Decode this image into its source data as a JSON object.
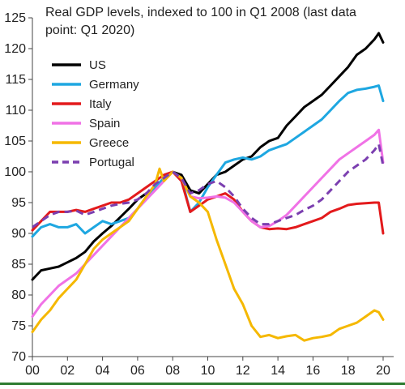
{
  "chart_data": {
    "type": "line",
    "title_lines": [
      "Real GDP levels, indexed to 100 in Q1 2008  (last data",
      "point: Q1 2020)"
    ],
    "xlabel": "",
    "ylabel": "",
    "xlim": [
      2000,
      2020.6
    ],
    "ylim": [
      70,
      125
    ],
    "x_ticks": [
      2000,
      2002,
      2004,
      2006,
      2008,
      2010,
      2012,
      2014,
      2016,
      2018,
      2020
    ],
    "x_tick_labels": [
      "00",
      "02",
      "04",
      "06",
      "08",
      "10",
      "12",
      "14",
      "16",
      "18",
      "20"
    ],
    "y_ticks": [
      70,
      75,
      80,
      85,
      90,
      95,
      100,
      105,
      110,
      115,
      120,
      125
    ],
    "y_tick_labels": [
      "70",
      "75",
      "80",
      "85",
      "90",
      "95",
      "100",
      "105",
      "110",
      "115",
      "120",
      "125"
    ],
    "grid": false,
    "legend_position": "top-left",
    "series": [
      {
        "name": "US",
        "color": "#000000",
        "dash": "solid",
        "points": [
          [
            2000,
            82.5
          ],
          [
            2000.5,
            84
          ],
          [
            2001,
            84.3
          ],
          [
            2001.5,
            84.6
          ],
          [
            2002,
            85.3
          ],
          [
            2002.5,
            86
          ],
          [
            2003,
            87
          ],
          [
            2003.5,
            88.7
          ],
          [
            2004,
            90
          ],
          [
            2004.5,
            91.2
          ],
          [
            2005,
            92.6
          ],
          [
            2005.5,
            94
          ],
          [
            2006,
            95.5
          ],
          [
            2006.5,
            96.5
          ],
          [
            2007,
            97.5
          ],
          [
            2007.5,
            99
          ],
          [
            2008,
            100
          ],
          [
            2008.5,
            99.5
          ],
          [
            2009,
            97
          ],
          [
            2009.5,
            96.5
          ],
          [
            2010,
            98
          ],
          [
            2010.5,
            99.5
          ],
          [
            2011,
            100
          ],
          [
            2011.5,
            101
          ],
          [
            2012,
            102
          ],
          [
            2012.5,
            102.5
          ],
          [
            2013,
            104
          ],
          [
            2013.5,
            105
          ],
          [
            2014,
            105.5
          ],
          [
            2014.5,
            107.5
          ],
          [
            2015,
            109
          ],
          [
            2015.5,
            110.5
          ],
          [
            2016,
            111.5
          ],
          [
            2016.5,
            112.5
          ],
          [
            2017,
            114
          ],
          [
            2017.5,
            115.5
          ],
          [
            2018,
            117
          ],
          [
            2018.5,
            119
          ],
          [
            2019,
            120
          ],
          [
            2019.5,
            121.5
          ],
          [
            2019.75,
            122.5
          ],
          [
            2020,
            121
          ]
        ]
      },
      {
        "name": "Germany",
        "color": "#1ea7e1",
        "dash": "solid",
        "points": [
          [
            2000,
            89.5
          ],
          [
            2000.5,
            91
          ],
          [
            2001,
            91.5
          ],
          [
            2001.5,
            91
          ],
          [
            2002,
            91
          ],
          [
            2002.5,
            91.5
          ],
          [
            2003,
            90
          ],
          [
            2003.5,
            91
          ],
          [
            2004,
            92
          ],
          [
            2004.5,
            91.5
          ],
          [
            2005,
            92
          ],
          [
            2005.5,
            92.5
          ],
          [
            2006,
            94
          ],
          [
            2006.5,
            96
          ],
          [
            2007,
            97.5
          ],
          [
            2007.5,
            99
          ],
          [
            2008,
            100
          ],
          [
            2008.5,
            99
          ],
          [
            2009,
            93.5
          ],
          [
            2009.5,
            95
          ],
          [
            2010,
            97.5
          ],
          [
            2010.5,
            99.5
          ],
          [
            2011,
            101.5
          ],
          [
            2011.5,
            102
          ],
          [
            2012,
            102.3
          ],
          [
            2012.5,
            102
          ],
          [
            2013,
            102.5
          ],
          [
            2013.5,
            103.5
          ],
          [
            2014,
            104
          ],
          [
            2014.5,
            104.5
          ],
          [
            2015,
            105.5
          ],
          [
            2015.5,
            106.5
          ],
          [
            2016,
            107.5
          ],
          [
            2016.5,
            108.5
          ],
          [
            2017,
            110
          ],
          [
            2017.5,
            111.5
          ],
          [
            2018,
            112.8
          ],
          [
            2018.5,
            113.3
          ],
          [
            2019,
            113.5
          ],
          [
            2019.5,
            113.8
          ],
          [
            2019.75,
            114
          ],
          [
            2020,
            111.5
          ]
        ]
      },
      {
        "name": "Italy",
        "color": "#e31a1c",
        "dash": "solid",
        "points": [
          [
            2000,
            90.5
          ],
          [
            2000.5,
            92
          ],
          [
            2001,
            93.5
          ],
          [
            2001.5,
            93.5
          ],
          [
            2002,
            93.5
          ],
          [
            2002.5,
            93.8
          ],
          [
            2003,
            93.5
          ],
          [
            2003.5,
            94
          ],
          [
            2004,
            94.5
          ],
          [
            2004.5,
            95
          ],
          [
            2005,
            95
          ],
          [
            2005.5,
            95.5
          ],
          [
            2006,
            96.5
          ],
          [
            2006.5,
            97.5
          ],
          [
            2007,
            98.5
          ],
          [
            2007.5,
            99.5
          ],
          [
            2008,
            100
          ],
          [
            2008.5,
            98.5
          ],
          [
            2009,
            93.5
          ],
          [
            2009.5,
            94.5
          ],
          [
            2010,
            95.5
          ],
          [
            2010.5,
            96
          ],
          [
            2011,
            96.5
          ],
          [
            2011.5,
            95.5
          ],
          [
            2012,
            93.5
          ],
          [
            2012.5,
            92
          ],
          [
            2013,
            91
          ],
          [
            2013.5,
            90.7
          ],
          [
            2014,
            90.8
          ],
          [
            2014.5,
            90.7
          ],
          [
            2015,
            91
          ],
          [
            2015.5,
            91.5
          ],
          [
            2016,
            92
          ],
          [
            2016.5,
            92.5
          ],
          [
            2017,
            93.5
          ],
          [
            2017.5,
            94
          ],
          [
            2018,
            94.6
          ],
          [
            2018.5,
            94.8
          ],
          [
            2019,
            94.9
          ],
          [
            2019.5,
            95
          ],
          [
            2019.75,
            95
          ],
          [
            2020,
            90
          ]
        ]
      },
      {
        "name": "Spain",
        "color": "#f072e6",
        "dash": "solid",
        "points": [
          [
            2000,
            76.5
          ],
          [
            2000.5,
            78.5
          ],
          [
            2001,
            80
          ],
          [
            2001.5,
            81.5
          ],
          [
            2002,
            82.5
          ],
          [
            2002.5,
            83.5
          ],
          [
            2003,
            85
          ],
          [
            2003.5,
            86.5
          ],
          [
            2004,
            88
          ],
          [
            2004.5,
            89.5
          ],
          [
            2005,
            91
          ],
          [
            2005.5,
            92.5
          ],
          [
            2006,
            94
          ],
          [
            2006.5,
            95.5
          ],
          [
            2007,
            97
          ],
          [
            2007.5,
            98.5
          ],
          [
            2008,
            100
          ],
          [
            2008.5,
            99
          ],
          [
            2009,
            96
          ],
          [
            2009.5,
            95.7
          ],
          [
            2010,
            95.8
          ],
          [
            2010.5,
            96
          ],
          [
            2011,
            95.8
          ],
          [
            2011.5,
            95
          ],
          [
            2012,
            93.5
          ],
          [
            2012.5,
            92
          ],
          [
            2013,
            91
          ],
          [
            2013.5,
            91.2
          ],
          [
            2014,
            92
          ],
          [
            2014.5,
            93
          ],
          [
            2015,
            94.5
          ],
          [
            2015.5,
            96
          ],
          [
            2016,
            97.5
          ],
          [
            2016.5,
            99
          ],
          [
            2017,
            100.5
          ],
          [
            2017.5,
            102
          ],
          [
            2018,
            103
          ],
          [
            2018.5,
            104
          ],
          [
            2019,
            105
          ],
          [
            2019.5,
            106
          ],
          [
            2019.75,
            106.8
          ],
          [
            2020,
            101.5
          ]
        ]
      },
      {
        "name": "Greece",
        "color": "#f5b800",
        "dash": "solid",
        "points": [
          [
            2000,
            74
          ],
          [
            2000.5,
            76
          ],
          [
            2001,
            77.5
          ],
          [
            2001.5,
            79.5
          ],
          [
            2002,
            81
          ],
          [
            2002.5,
            82.5
          ],
          [
            2003,
            85
          ],
          [
            2003.5,
            87.5
          ],
          [
            2004,
            89
          ],
          [
            2004.5,
            90
          ],
          [
            2005,
            91
          ],
          [
            2005.5,
            92
          ],
          [
            2006,
            94
          ],
          [
            2006.5,
            96
          ],
          [
            2007,
            98
          ],
          [
            2007.25,
            100.5
          ],
          [
            2007.5,
            98.5
          ],
          [
            2008,
            100
          ],
          [
            2008.5,
            99
          ],
          [
            2009,
            96
          ],
          [
            2009.5,
            95
          ],
          [
            2010,
            93.5
          ],
          [
            2010.5,
            89
          ],
          [
            2011,
            85
          ],
          [
            2011.5,
            81
          ],
          [
            2012,
            78.5
          ],
          [
            2012.5,
            75
          ],
          [
            2013,
            73.2
          ],
          [
            2013.5,
            73.5
          ],
          [
            2014,
            73
          ],
          [
            2014.5,
            73.3
          ],
          [
            2015,
            73.5
          ],
          [
            2015.5,
            72.6
          ],
          [
            2016,
            73
          ],
          [
            2016.5,
            73.2
          ],
          [
            2017,
            73.5
          ],
          [
            2017.5,
            74.5
          ],
          [
            2018,
            75
          ],
          [
            2018.5,
            75.5
          ],
          [
            2019,
            76.5
          ],
          [
            2019.5,
            77.5
          ],
          [
            2019.75,
            77.2
          ],
          [
            2020,
            76
          ]
        ]
      },
      {
        "name": "Portugal",
        "color": "#7b3fb0",
        "dash": "dashed",
        "points": [
          [
            2000,
            91
          ],
          [
            2000.5,
            92
          ],
          [
            2001,
            93
          ],
          [
            2001.5,
            93.5
          ],
          [
            2002,
            93.5
          ],
          [
            2002.5,
            93.7
          ],
          [
            2003,
            93
          ],
          [
            2003.5,
            93.5
          ],
          [
            2004,
            94
          ],
          [
            2004.5,
            94.5
          ],
          [
            2005,
            94.8
          ],
          [
            2005.5,
            95
          ],
          [
            2006,
            95.5
          ],
          [
            2006.5,
            96.5
          ],
          [
            2007,
            98
          ],
          [
            2007.5,
            99
          ],
          [
            2008,
            100
          ],
          [
            2008.5,
            99
          ],
          [
            2009,
            96.5
          ],
          [
            2009.5,
            97
          ],
          [
            2010,
            98
          ],
          [
            2010.5,
            98.5
          ],
          [
            2011,
            97.5
          ],
          [
            2011.5,
            96
          ],
          [
            2012,
            94
          ],
          [
            2012.5,
            92.5
          ],
          [
            2013,
            91.5
          ],
          [
            2013.5,
            91.5
          ],
          [
            2014,
            92
          ],
          [
            2014.5,
            92.5
          ],
          [
            2015,
            93
          ],
          [
            2015.5,
            93.8
          ],
          [
            2016,
            94.5
          ],
          [
            2016.5,
            95.5
          ],
          [
            2017,
            97
          ],
          [
            2017.5,
            98.5
          ],
          [
            2018,
            100
          ],
          [
            2018.5,
            101
          ],
          [
            2019,
            102
          ],
          [
            2019.5,
            103.5
          ],
          [
            2019.75,
            104.5
          ],
          [
            2020,
            101
          ]
        ]
      }
    ]
  }
}
